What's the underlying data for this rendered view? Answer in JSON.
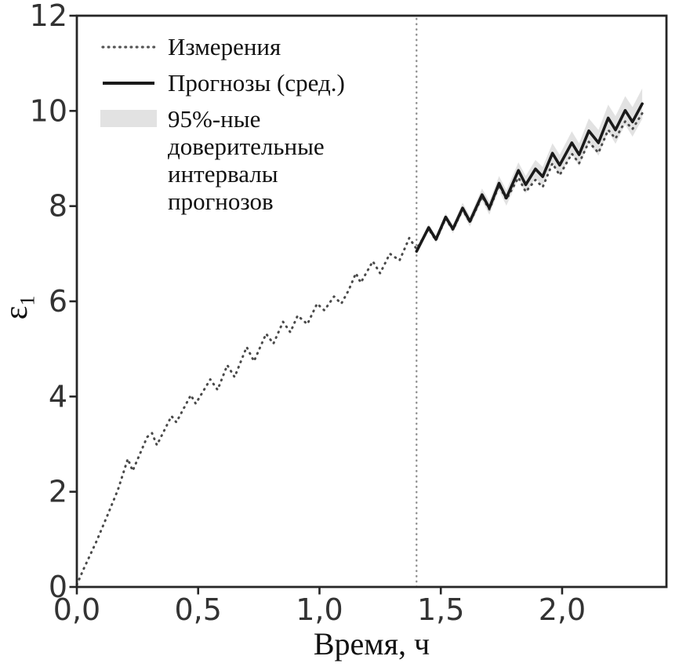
{
  "figure": {
    "background": "#ffffff"
  },
  "axes": {
    "xlabel": "Время, ч",
    "ylabel_symbol": "ε",
    "ylabel_sub": "1"
  },
  "legend": {
    "items": [
      {
        "label": "Измерения",
        "marker": "dotted-line"
      },
      {
        "label": "Прогнозы (сред.)",
        "marker": "solid-line"
      },
      {
        "label": "95%-ные доверительные интервалы прогнозов",
        "marker": "filled-band"
      }
    ]
  },
  "colors": {
    "measurements": "#4a4a4a",
    "forecast": "#1a1a1a",
    "band": "#e2e2e2",
    "frame": "#262626",
    "tick_text": "#333333",
    "vline": "#8f8f8f"
  },
  "chart_data": {
    "type": "line",
    "title": "",
    "xlabel": "Время, ч",
    "ylabel": "ε1",
    "xlim": [
      0,
      2.43
    ],
    "ylim": [
      0,
      12
    ],
    "grid": false,
    "legend_position": "upper left",
    "x_ticks": [
      0,
      0.5,
      1,
      1.5,
      2
    ],
    "x_tick_labels": [
      "0,0",
      "0,5",
      "1,0",
      "1,5",
      "2,0"
    ],
    "y_ticks": [
      0,
      2,
      4,
      6,
      8,
      10,
      12
    ],
    "y_tick_labels": [
      "0",
      "2",
      "4",
      "6",
      "8",
      "10",
      "12"
    ],
    "forecast_start_marker_x": 1.4,
    "series": [
      {
        "name": "Измерения",
        "style": "dotted",
        "points": [
          [
            0.0,
            0.05
          ],
          [
            0.03,
            0.4
          ],
          [
            0.08,
            0.95
          ],
          [
            0.13,
            1.55
          ],
          [
            0.17,
            2.05
          ],
          [
            0.21,
            2.69
          ],
          [
            0.23,
            2.44
          ],
          [
            0.29,
            3.15
          ],
          [
            0.31,
            3.23
          ],
          [
            0.33,
            2.98
          ],
          [
            0.39,
            3.59
          ],
          [
            0.41,
            3.46
          ],
          [
            0.47,
            4.03
          ],
          [
            0.49,
            3.85
          ],
          [
            0.55,
            4.36
          ],
          [
            0.58,
            4.14
          ],
          [
            0.62,
            4.66
          ],
          [
            0.65,
            4.41
          ],
          [
            0.7,
            5.04
          ],
          [
            0.73,
            4.74
          ],
          [
            0.78,
            5.32
          ],
          [
            0.81,
            5.11
          ],
          [
            0.85,
            5.57
          ],
          [
            0.88,
            5.35
          ],
          [
            0.91,
            5.7
          ],
          [
            0.95,
            5.52
          ],
          [
            0.99,
            5.95
          ],
          [
            1.02,
            5.81
          ],
          [
            1.06,
            6.1
          ],
          [
            1.09,
            5.95
          ],
          [
            1.12,
            6.23
          ],
          [
            1.15,
            6.59
          ],
          [
            1.17,
            6.39
          ],
          [
            1.22,
            6.84
          ],
          [
            1.25,
            6.59
          ],
          [
            1.29,
            7.0
          ],
          [
            1.33,
            6.86
          ],
          [
            1.37,
            7.33
          ],
          [
            1.4,
            7.1
          ],
          [
            1.45,
            7.52
          ],
          [
            1.48,
            7.28
          ],
          [
            1.52,
            7.74
          ],
          [
            1.55,
            7.5
          ],
          [
            1.59,
            7.93
          ],
          [
            1.62,
            7.66
          ],
          [
            1.67,
            8.2
          ],
          [
            1.7,
            7.93
          ],
          [
            1.74,
            8.44
          ],
          [
            1.77,
            8.14
          ],
          [
            1.82,
            8.6
          ],
          [
            1.85,
            8.3
          ],
          [
            1.89,
            8.55
          ],
          [
            1.92,
            8.4
          ],
          [
            1.96,
            8.9
          ],
          [
            1.99,
            8.65
          ],
          [
            2.04,
            9.1
          ],
          [
            2.07,
            8.9
          ],
          [
            2.11,
            9.35
          ],
          [
            2.15,
            9.12
          ],
          [
            2.19,
            9.6
          ],
          [
            2.22,
            9.42
          ],
          [
            2.26,
            9.78
          ],
          [
            2.29,
            9.62
          ],
          [
            2.33,
            9.95
          ]
        ]
      },
      {
        "name": "Прогнозы (сред.)",
        "style": "solid",
        "points": [
          [
            1.4,
            7.05
          ],
          [
            1.45,
            7.55
          ],
          [
            1.48,
            7.3
          ],
          [
            1.52,
            7.77
          ],
          [
            1.55,
            7.52
          ],
          [
            1.59,
            7.96
          ],
          [
            1.62,
            7.68
          ],
          [
            1.67,
            8.24
          ],
          [
            1.7,
            7.96
          ],
          [
            1.74,
            8.48
          ],
          [
            1.77,
            8.17
          ],
          [
            1.82,
            8.75
          ],
          [
            1.85,
            8.45
          ],
          [
            1.89,
            8.78
          ],
          [
            1.92,
            8.62
          ],
          [
            1.96,
            9.11
          ],
          [
            1.99,
            8.86
          ],
          [
            2.04,
            9.33
          ],
          [
            2.07,
            9.08
          ],
          [
            2.11,
            9.58
          ],
          [
            2.15,
            9.33
          ],
          [
            2.19,
            9.85
          ],
          [
            2.22,
            9.6
          ],
          [
            2.26,
            10.01
          ],
          [
            2.29,
            9.77
          ],
          [
            2.33,
            10.15
          ]
        ]
      },
      {
        "name": "95%-ные доверительные интервалы прогнозов",
        "style": "band",
        "points": [
          [
            1.4,
            7.0,
            7.1
          ],
          [
            1.45,
            7.49,
            7.62
          ],
          [
            1.48,
            7.23,
            7.37
          ],
          [
            1.52,
            7.69,
            7.85
          ],
          [
            1.55,
            7.43,
            7.61
          ],
          [
            1.59,
            7.85,
            8.07
          ],
          [
            1.62,
            7.57,
            7.79
          ],
          [
            1.67,
            8.11,
            8.37
          ],
          [
            1.7,
            7.82,
            8.1
          ],
          [
            1.74,
            8.33,
            8.63
          ],
          [
            1.77,
            8.01,
            8.33
          ],
          [
            1.82,
            8.58,
            8.92
          ],
          [
            1.85,
            8.27,
            8.63
          ],
          [
            1.89,
            8.59,
            8.97
          ],
          [
            1.92,
            8.42,
            8.82
          ],
          [
            1.96,
            8.9,
            9.32
          ],
          [
            1.99,
            8.64,
            9.08
          ],
          [
            2.04,
            9.09,
            9.57
          ],
          [
            2.07,
            8.84,
            9.32
          ],
          [
            2.11,
            9.32,
            9.84
          ],
          [
            2.15,
            9.06,
            9.6
          ],
          [
            2.19,
            9.57,
            10.13
          ],
          [
            2.22,
            9.31,
            9.89
          ],
          [
            2.26,
            9.71,
            10.31
          ],
          [
            2.29,
            9.46,
            10.08
          ],
          [
            2.33,
            9.83,
            10.47
          ]
        ]
      }
    ]
  }
}
